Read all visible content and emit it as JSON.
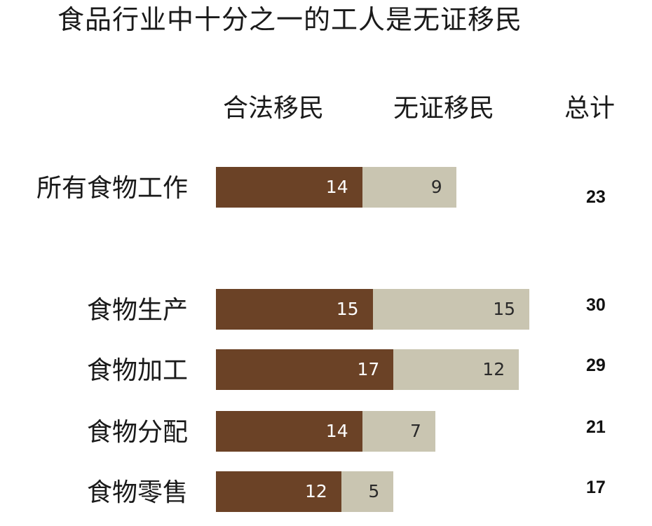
{
  "chart_data": {
    "type": "bar",
    "orientation": "horizontal",
    "stacked": true,
    "title": "食品行业中十分之一的工人是无证移民",
    "categories": [
      "所有食物工作",
      "食物生产",
      "食物加工",
      "食物分配",
      "食物零售"
    ],
    "series": [
      {
        "name": "合法移民",
        "values": [
          14,
          15,
          17,
          14,
          12
        ],
        "color": "#6b4226"
      },
      {
        "name": "无证移民",
        "values": [
          9,
          15,
          12,
          7,
          5
        ],
        "color": "#c9c5b1"
      }
    ],
    "totals_label": "总计",
    "totals": [
      23,
      30,
      29,
      21,
      17
    ],
    "grid": false,
    "legend": "top"
  }
}
